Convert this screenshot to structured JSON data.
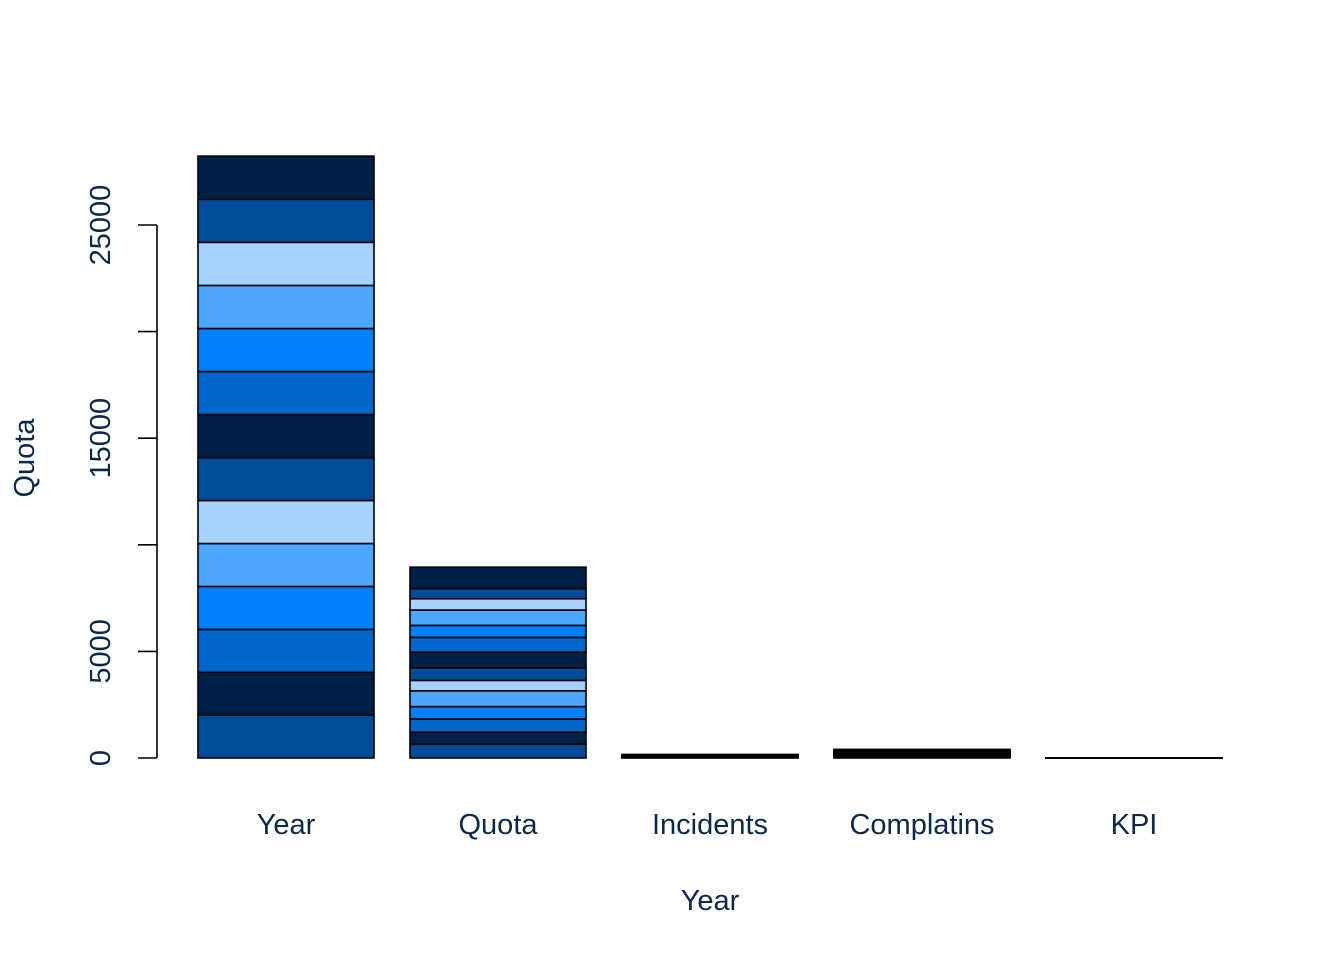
{
  "chart_data": {
    "type": "bar",
    "stacked": true,
    "xlabel": "Year",
    "ylabel": "Quota",
    "ylim": [
      0,
      28500
    ],
    "y_ticks": [
      0,
      5000,
      10000,
      15000,
      20000,
      25000
    ],
    "y_tick_labels": [
      "0",
      "5000",
      "",
      "15000",
      "",
      "25000"
    ],
    "categories": [
      "Year",
      "Quota",
      "Incidents",
      "Complatins",
      "KPI"
    ],
    "segment_colors": [
      "#004C99",
      "#002147",
      "#0066CC",
      "#007FFF",
      "#4DA6FF",
      "#A6D2FF"
    ],
    "stacks": [
      {
        "category": "Year",
        "segments": [
          2010,
          2011,
          2012,
          2013,
          2014,
          2015,
          2016,
          2017,
          2018,
          2019,
          2020,
          2021,
          2022,
          2023
        ]
      },
      {
        "category": "Quota",
        "segments": [
          650,
          560,
          620,
          580,
          740,
          490,
          590,
          730,
          700,
          560,
          720,
          530,
          480,
          1000
        ]
      },
      {
        "category": "Incidents",
        "segments": [
          12,
          10,
          14,
          11,
          13,
          9,
          12,
          15,
          10,
          11,
          13,
          12,
          10,
          14
        ]
      },
      {
        "category": "Complatins",
        "segments": [
          28,
          30,
          25,
          32,
          27,
          29,
          31,
          26,
          30,
          28,
          27,
          33,
          29,
          30
        ]
      },
      {
        "category": "KPI",
        "segments": [
          0.5,
          0.6,
          0.4,
          0.7,
          0.5,
          0.6,
          0.5,
          0.4,
          0.6,
          0.5,
          0.7,
          0.6,
          0.5,
          0.6
        ]
      }
    ]
  }
}
